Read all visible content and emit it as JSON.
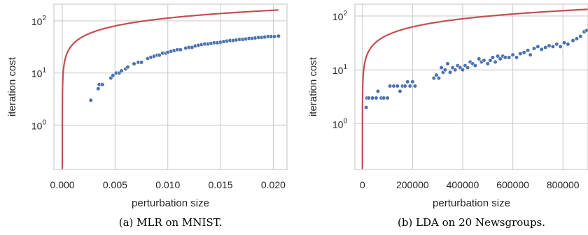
{
  "colors": {
    "points": "#4c72b0",
    "curve": "#c44e52",
    "grid": "#cccccc",
    "text": "#262626"
  },
  "chart_data": [
    {
      "type": "scatter",
      "caption": "(a) MLR on MNIST.",
      "xlabel": "perturbation size",
      "ylabel": "iteration cost",
      "yscale": "log",
      "grid": true,
      "xlim": [
        -0.0008,
        0.0213
      ],
      "ylim_log10": [
        -0.85,
        2.32
      ],
      "xticks": [
        0.0,
        0.005,
        0.01,
        0.015,
        0.02
      ],
      "xtick_labels": [
        "0.000",
        "0.005",
        "0.010",
        "0.015",
        "0.020"
      ],
      "yticks": [
        1,
        10,
        100
      ],
      "ytick_labels": [
        [
          "10",
          "0"
        ],
        [
          "10",
          "1"
        ],
        [
          "10",
          "2"
        ]
      ],
      "curve": {
        "fn": "sqrt",
        "a": 1130,
        "x_end": 0.0205
      },
      "points": [
        [
          0.0027,
          3
        ],
        [
          0.0034,
          5
        ],
        [
          0.0035,
          6
        ],
        [
          0.0038,
          6
        ],
        [
          0.0046,
          8
        ],
        [
          0.0048,
          9
        ],
        [
          0.0051,
          10
        ],
        [
          0.0054,
          10
        ],
        [
          0.0056,
          11
        ],
        [
          0.006,
          12
        ],
        [
          0.0062,
          13
        ],
        [
          0.0068,
          15
        ],
        [
          0.0072,
          16
        ],
        [
          0.0075,
          16
        ],
        [
          0.0081,
          19
        ],
        [
          0.0084,
          20
        ],
        [
          0.0087,
          21
        ],
        [
          0.009,
          22
        ],
        [
          0.0092,
          22
        ],
        [
          0.0095,
          24
        ],
        [
          0.0098,
          24
        ],
        [
          0.01,
          25
        ],
        [
          0.0103,
          26
        ],
        [
          0.0106,
          27
        ],
        [
          0.0109,
          28
        ],
        [
          0.0112,
          28
        ],
        [
          0.0117,
          30
        ],
        [
          0.012,
          31
        ],
        [
          0.0123,
          31
        ],
        [
          0.0126,
          33
        ],
        [
          0.0129,
          34
        ],
        [
          0.0132,
          35
        ],
        [
          0.0135,
          36
        ],
        [
          0.0138,
          36
        ],
        [
          0.0141,
          37
        ],
        [
          0.0144,
          38
        ],
        [
          0.0147,
          38
        ],
        [
          0.015,
          39
        ],
        [
          0.0153,
          40
        ],
        [
          0.0156,
          41
        ],
        [
          0.0159,
          42
        ],
        [
          0.0162,
          42
        ],
        [
          0.0165,
          43
        ],
        [
          0.0168,
          44
        ],
        [
          0.0171,
          44
        ],
        [
          0.0174,
          45
        ],
        [
          0.0177,
          46
        ],
        [
          0.018,
          46
        ],
        [
          0.0183,
          47
        ],
        [
          0.0186,
          48
        ],
        [
          0.0189,
          48
        ],
        [
          0.0192,
          49
        ],
        [
          0.0195,
          50
        ],
        [
          0.0198,
          50
        ],
        [
          0.0201,
          50
        ],
        [
          0.0205,
          51
        ]
      ]
    },
    {
      "type": "scatter",
      "caption": "(b) LDA on 20 Newsgroups.",
      "xlabel": "perturbation size",
      "ylabel": "iteration cost",
      "yscale": "log",
      "grid": true,
      "xlim": [
        -30000,
        900000
      ],
      "ylim_log10": [
        -0.85,
        2.22
      ],
      "xticks": [
        0,
        200000,
        400000,
        600000,
        800000
      ],
      "xtick_labels": [
        "0",
        "200000",
        "400000",
        "600000",
        "800000"
      ],
      "yticks": [
        1,
        10,
        100
      ],
      "ytick_labels": [
        [
          "10",
          "0"
        ],
        [
          "10",
          "1"
        ],
        [
          "10",
          "2"
        ]
      ],
      "curve": {
        "fn": "sqrt",
        "a": 0.1405,
        "x_end": 900000
      },
      "points": [
        [
          15000,
          2
        ],
        [
          18000,
          3
        ],
        [
          25000,
          3
        ],
        [
          40000,
          3
        ],
        [
          55000,
          3
        ],
        [
          62000,
          4
        ],
        [
          75000,
          3
        ],
        [
          85000,
          3
        ],
        [
          100000,
          3
        ],
        [
          110000,
          5
        ],
        [
          125000,
          5
        ],
        [
          140000,
          5
        ],
        [
          150000,
          4
        ],
        [
          160000,
          5
        ],
        [
          170000,
          5
        ],
        [
          180000,
          6
        ],
        [
          190000,
          5
        ],
        [
          200000,
          6
        ],
        [
          210000,
          5
        ],
        [
          285000,
          7
        ],
        [
          295000,
          8
        ],
        [
          305000,
          7
        ],
        [
          315000,
          11
        ],
        [
          322000,
          9
        ],
        [
          330000,
          10
        ],
        [
          340000,
          13
        ],
        [
          350000,
          9
        ],
        [
          360000,
          11
        ],
        [
          370000,
          10
        ],
        [
          380000,
          12
        ],
        [
          390000,
          11
        ],
        [
          400000,
          10
        ],
        [
          410000,
          12
        ],
        [
          420000,
          11
        ],
        [
          430000,
          14
        ],
        [
          440000,
          13
        ],
        [
          450000,
          12
        ],
        [
          465000,
          16
        ],
        [
          475000,
          14
        ],
        [
          485000,
          15
        ],
        [
          500000,
          13
        ],
        [
          510000,
          15
        ],
        [
          520000,
          17
        ],
        [
          530000,
          14
        ],
        [
          540000,
          18
        ],
        [
          550000,
          16
        ],
        [
          560000,
          18
        ],
        [
          570000,
          17
        ],
        [
          585000,
          17
        ],
        [
          600000,
          19
        ],
        [
          615000,
          17
        ],
        [
          630000,
          20
        ],
        [
          645000,
          21
        ],
        [
          660000,
          23
        ],
        [
          670000,
          19
        ],
        [
          685000,
          25
        ],
        [
          700000,
          27
        ],
        [
          715000,
          24
        ],
        [
          730000,
          26
        ],
        [
          745000,
          28
        ],
        [
          760000,
          27
        ],
        [
          775000,
          30
        ],
        [
          790000,
          27
        ],
        [
          805000,
          32
        ],
        [
          820000,
          30
        ],
        [
          840000,
          35
        ],
        [
          855000,
          38
        ],
        [
          870000,
          42
        ],
        [
          885000,
          51
        ],
        [
          895000,
          54
        ]
      ]
    }
  ]
}
